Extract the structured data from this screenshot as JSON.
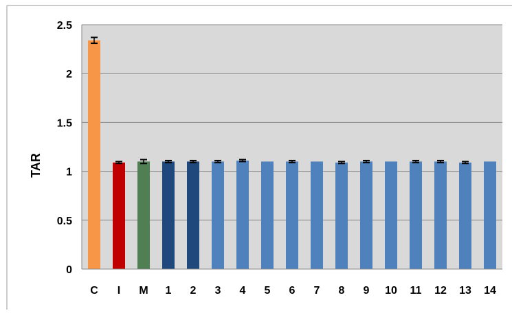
{
  "chart_data": {
    "type": "bar",
    "title": "",
    "xlabel": "",
    "ylabel": "TAR",
    "ylim": [
      0,
      2.5
    ],
    "yticks": [
      0,
      0.5,
      1,
      1.5,
      2,
      2.5
    ],
    "ytick_labels": [
      "0",
      "0.5",
      "1",
      "1.5",
      "2",
      "2.5"
    ],
    "grid": true,
    "legend": "none",
    "plot_background": "#d9d9d9",
    "gridline_color": "#888888",
    "categories": [
      "C",
      "I",
      "M",
      "1",
      "2",
      "3",
      "4",
      "5",
      "6",
      "7",
      "8",
      "9",
      "10",
      "11",
      "12",
      "13",
      "14"
    ],
    "values": [
      2.34,
      1.09,
      1.1,
      1.1,
      1.1,
      1.1,
      1.11,
      1.1,
      1.1,
      1.1,
      1.09,
      1.1,
      1.1,
      1.1,
      1.1,
      1.09,
      1.1
    ],
    "errors": [
      0.03,
      0.01,
      0.02,
      0.01,
      0.01,
      0.01,
      0.01,
      0.0,
      0.01,
      0.0,
      0.01,
      0.01,
      0.0,
      0.01,
      0.01,
      0.01,
      0.0
    ],
    "colors": [
      "#f79646",
      "#c00000",
      "#4f7f52",
      "#1f497d",
      "#1f497d",
      "#4f81bd",
      "#4f81bd",
      "#4f81bd",
      "#4f81bd",
      "#4f81bd",
      "#4f81bd",
      "#4f81bd",
      "#4f81bd",
      "#4f81bd",
      "#4f81bd",
      "#4f81bd",
      "#4f81bd"
    ]
  }
}
